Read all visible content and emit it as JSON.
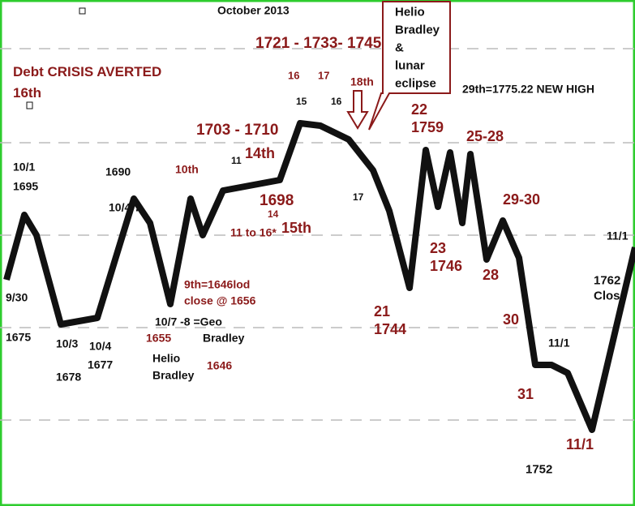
{
  "title": "October 2013",
  "callout": [
    "Helio",
    "Bradley",
    "&",
    "lunar",
    "eclipse"
  ],
  "annotations": [
    "1721 - 1733- 1745",
    "Debt CRISIS AVERTED",
    "16th",
    "16",
    "17",
    "18th",
    "29th=1775.22 NEW HIGH",
    "15",
    "16",
    "22",
    "1759",
    "25-28",
    "1703 - 1710",
    "14th",
    "11",
    "10/1",
    "1695",
    "1690",
    "10th",
    "10/4-7",
    "17",
    "1698",
    "14",
    "11 to 16*",
    "15th",
    "29-30",
    "11/1",
    "23",
    "1746",
    "28",
    "9th=1646lod",
    "close @ 1656",
    "1762",
    "Close",
    "9/30",
    "1675",
    "21",
    "1744",
    "30",
    "10/7  -8 =Geo",
    "Bradley",
    "10/3",
    "10/4",
    "1677",
    "1655",
    "Helio",
    "Bradley",
    "1646",
    "11/1",
    "1678",
    "31",
    "11/1",
    "1752"
  ]
}
